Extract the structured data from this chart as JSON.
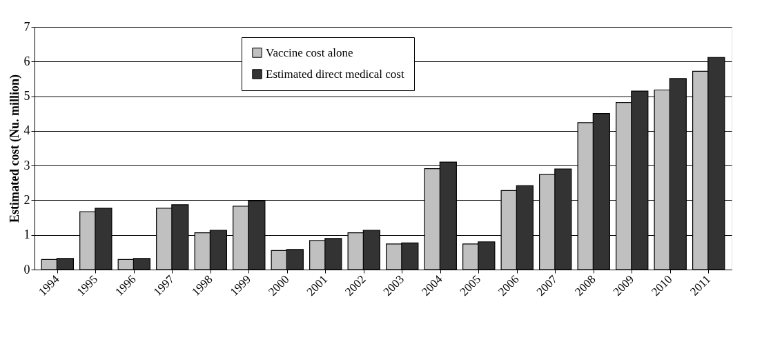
{
  "chart_data": {
    "type": "bar",
    "ylabel": "Estimated cost (Nu. million)",
    "categories": [
      "1994",
      "1995",
      "1996",
      "1997",
      "1998",
      "1999",
      "2000",
      "2001",
      "2002",
      "2003",
      "2004",
      "2005",
      "2006",
      "2007",
      "2008",
      "2009",
      "2010",
      "2011"
    ],
    "series": [
      {
        "name": "Vaccine cost alone",
        "color": "#c0c0c0",
        "values": [
          0.29,
          1.67,
          0.29,
          1.77,
          1.06,
          1.83,
          0.55,
          0.84,
          1.06,
          0.74,
          2.91,
          0.74,
          2.28,
          2.74,
          4.24,
          4.82,
          5.18,
          5.72
        ]
      },
      {
        "name": "Estimated direct medical cost",
        "color": "#333333",
        "values": [
          0.32,
          1.77,
          0.32,
          1.87,
          1.13,
          1.98,
          0.58,
          0.9,
          1.13,
          0.77,
          3.1,
          0.8,
          2.42,
          2.9,
          4.5,
          5.15,
          5.51,
          6.12
        ]
      }
    ],
    "ylim": [
      0,
      7
    ],
    "yticks": [
      0,
      1,
      2,
      3,
      4,
      5,
      6,
      7
    ],
    "grid": "y",
    "legend": "top"
  }
}
